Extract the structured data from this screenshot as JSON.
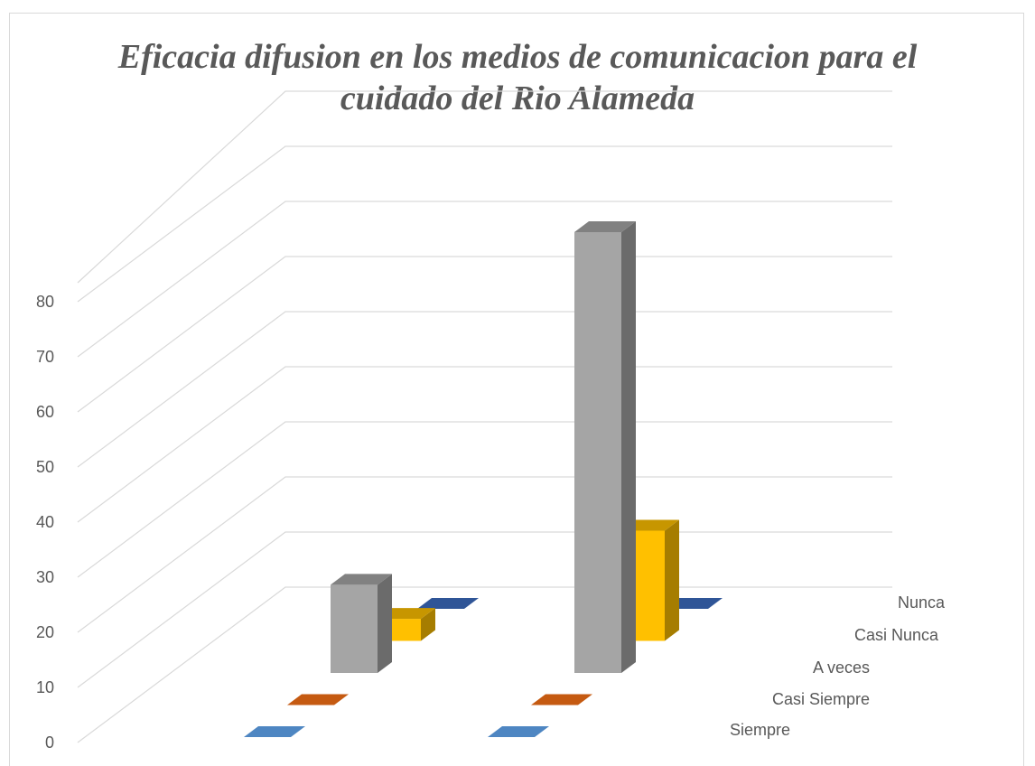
{
  "chart_data": {
    "type": "bar",
    "title_lines": [
      "Eficacia difusion en los medios de comunicacion para el",
      "cuidado del Rio Alameda"
    ],
    "categories": [
      "",
      ""
    ],
    "y_ticks": [
      "0",
      "10",
      "20",
      "30",
      "40",
      "50",
      "60",
      "70",
      "80"
    ],
    "ylim": [
      0,
      80
    ],
    "series": [
      {
        "name": "Siempre",
        "values": [
          0,
          0
        ],
        "color": "#4e86c2"
      },
      {
        "name": "Casi Siempre",
        "values": [
          0,
          0
        ],
        "color": "#c55a11"
      },
      {
        "name": "A veces",
        "values": [
          16,
          80
        ],
        "color": "#a5a5a5"
      },
      {
        "name": "Casi Nunca",
        "values": [
          4,
          20
        ],
        "color": "#ffc000"
      },
      {
        "name": "Nunca",
        "values": [
          0,
          0
        ],
        "color": "#2f5597"
      }
    ],
    "grid": true,
    "legend": "depth-axis-right"
  }
}
